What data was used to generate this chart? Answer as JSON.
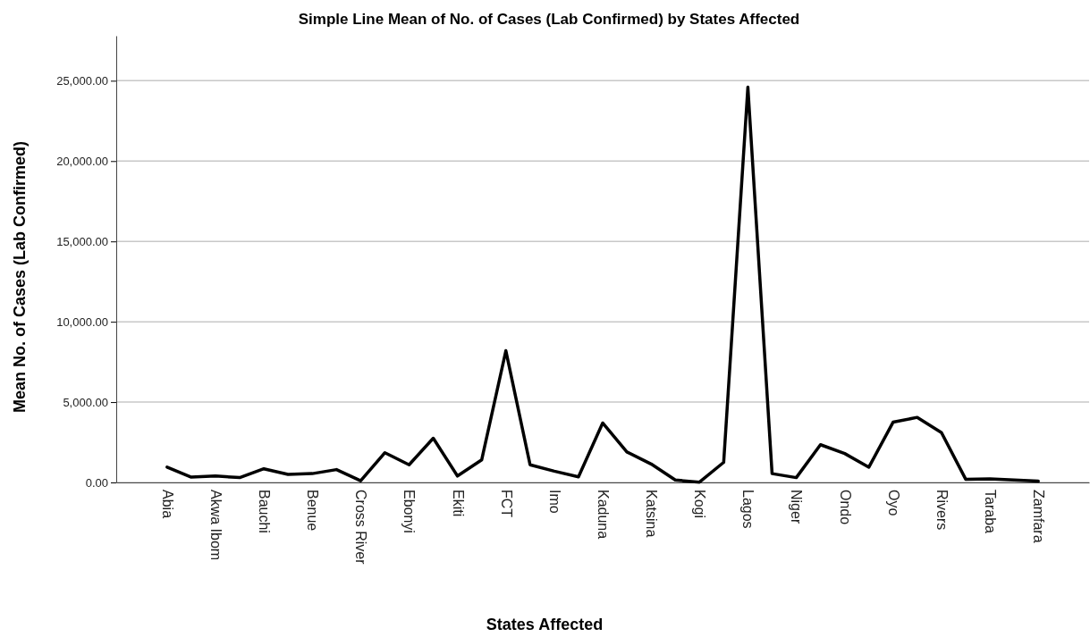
{
  "chart_data": {
    "type": "line",
    "title": "Simple Line Mean of No. of Cases (Lab Confirmed) by States Affected",
    "xlabel": "States Affected",
    "ylabel": "Mean No. of Cases (Lab Confirmed)",
    "categories": [
      "Abia",
      null,
      "Akwa Ibom",
      null,
      "Bauchi",
      null,
      "Benue",
      null,
      "Cross River",
      null,
      "Ebonyi",
      null,
      "Ekiti",
      null,
      "FCT",
      null,
      "Imo",
      null,
      "Kaduna",
      null,
      "Katsina",
      null,
      "Kogi",
      null,
      "Lagos",
      null,
      "Niger",
      null,
      "Ondo",
      null,
      "Oyo",
      null,
      "Rivers",
      null,
      "Taraba",
      null,
      "Zamfara"
    ],
    "series": [
      {
        "color": "#000000",
        "values": [
          950,
          330,
          400,
          300,
          850,
          500,
          550,
          800,
          100,
          1850,
          1100,
          2750,
          400,
          1400,
          8200,
          1100,
          700,
          350,
          3700,
          1900,
          1150,
          150,
          20,
          1250,
          24600,
          550,
          300,
          2350,
          1800,
          950,
          3750,
          4050,
          3100,
          200,
          220,
          150,
          80
        ]
      }
    ],
    "ylim": [
      0,
      27800
    ],
    "yticks": [
      {
        "value": 0,
        "label": "0.00"
      },
      {
        "value": 5000,
        "label": "5,000.00"
      },
      {
        "value": 10000,
        "label": "10,000.00"
      },
      {
        "value": 15000,
        "label": "15,000.00"
      },
      {
        "value": 20000,
        "label": "20,000.00"
      },
      {
        "value": 25000,
        "label": "25,000.00"
      }
    ],
    "grid": "y",
    "marker": "none",
    "line_style": "solid"
  }
}
